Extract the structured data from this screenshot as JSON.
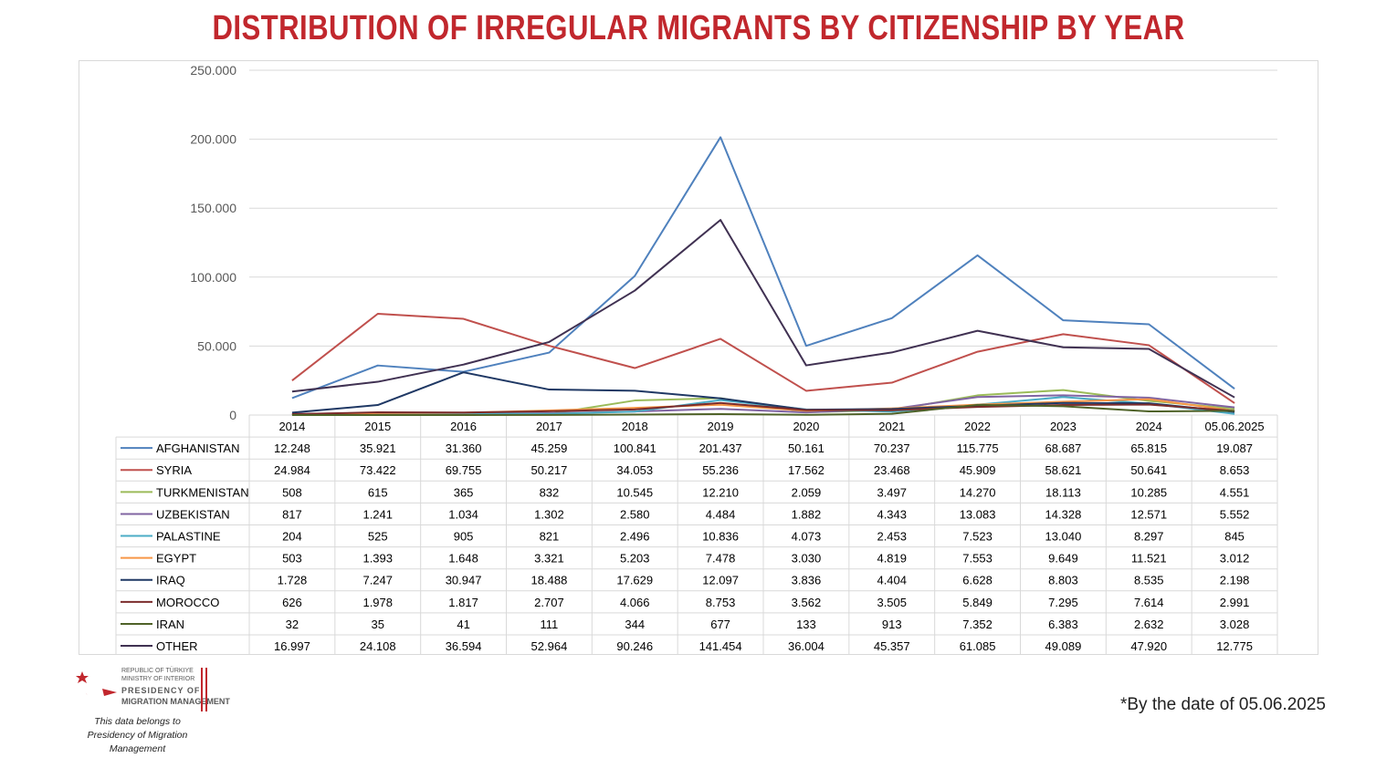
{
  "title": "DISTRIBUTION OF IRREGULAR MIGRANTS BY CITIZENSHIP BY YEAR",
  "footnote": "*By the date of 05.06.2025",
  "logo": {
    "line1": "REPUBLIC OF TÜRKIYE",
    "line2": "MINISTRY OF INTERIOR",
    "line3": "PRESIDENCY OF",
    "line4": "MIGRATION MANAGEMENT",
    "colors": {
      "red": "#c1272d"
    }
  },
  "credit": {
    "line1": "This data belongs to",
    "line2": "Presidency of Migration Management"
  },
  "chart_data": {
    "type": "line",
    "title": "DISTRIBUTION OF IRREGULAR MIGRANTS BY CITIZENSHIP BY YEAR",
    "xlabel": "",
    "ylabel": "",
    "ylim": [
      0,
      250000
    ],
    "yticks": [
      {
        "value": 0,
        "label": "0"
      },
      {
        "value": 50000,
        "label": "50.000"
      },
      {
        "value": 100000,
        "label": "100.000"
      },
      {
        "value": 150000,
        "label": "150.000"
      },
      {
        "value": 200000,
        "label": "200.000"
      },
      {
        "value": 250000,
        "label": "250.000"
      }
    ],
    "grid": true,
    "legend": "data-table",
    "categories": [
      "2014",
      "2015",
      "2016",
      "2017",
      "2018",
      "2019",
      "2020",
      "2021",
      "2022",
      "2023",
      "2024",
      "05.06.2025"
    ],
    "series": [
      {
        "name": "AFGHANISTAN",
        "color": "#4f81bd",
        "values": [
          12248,
          35921,
          31360,
          45259,
          100841,
          201437,
          50161,
          70237,
          115775,
          68687,
          65815,
          19087
        ],
        "labels": [
          "12.248",
          "35.921",
          "31.360",
          "45.259",
          "100.841",
          "201.437",
          "50.161",
          "70.237",
          "115.775",
          "68.687",
          "65.815",
          "19.087"
        ]
      },
      {
        "name": "SYRIA",
        "color": "#c0504d",
        "values": [
          24984,
          73422,
          69755,
          50217,
          34053,
          55236,
          17562,
          23468,
          45909,
          58621,
          50641,
          8653
        ],
        "labels": [
          "24.984",
          "73.422",
          "69.755",
          "50.217",
          "34.053",
          "55.236",
          "17.562",
          "23.468",
          "45.909",
          "58.621",
          "50.641",
          "8.653"
        ]
      },
      {
        "name": "TURKMENISTAN",
        "color": "#9bbb59",
        "values": [
          508,
          615,
          365,
          832,
          10545,
          12210,
          2059,
          3497,
          14270,
          18113,
          10285,
          4551
        ],
        "labels": [
          "508",
          "615",
          "365",
          "832",
          "10.545",
          "12.210",
          "2.059",
          "3.497",
          "14.270",
          "18.113",
          "10.285",
          "4.551"
        ]
      },
      {
        "name": "UZBEKISTAN",
        "color": "#8064a2",
        "values": [
          817,
          1241,
          1034,
          1302,
          2580,
          4484,
          1882,
          4343,
          13083,
          14328,
          12571,
          5552
        ],
        "labels": [
          "817",
          "1.241",
          "1.034",
          "1.302",
          "2.580",
          "4.484",
          "1.882",
          "4.343",
          "13.083",
          "14.328",
          "12.571",
          "5.552"
        ]
      },
      {
        "name": "PALASTINE",
        "color": "#4bacc6",
        "values": [
          204,
          525,
          905,
          821,
          2496,
          10836,
          4073,
          2453,
          7523,
          13040,
          8297,
          845
        ],
        "labels": [
          "204",
          "525",
          "905",
          "821",
          "2.496",
          "10.836",
          "4.073",
          "2.453",
          "7.523",
          "13.040",
          "8.297",
          "845"
        ]
      },
      {
        "name": "EGYPT",
        "color": "#f79646",
        "values": [
          503,
          1393,
          1648,
          3321,
          5203,
          7478,
          3030,
          4819,
          7553,
          9649,
          11521,
          3012
        ],
        "labels": [
          "503",
          "1.393",
          "1.648",
          "3.321",
          "5.203",
          "7.478",
          "3.030",
          "4.819",
          "7.553",
          "9.649",
          "11.521",
          "3.012"
        ]
      },
      {
        "name": "IRAQ",
        "color": "#1f3864",
        "values": [
          1728,
          7247,
          30947,
          18488,
          17629,
          12097,
          3836,
          4404,
          6628,
          8803,
          8535,
          2198
        ],
        "labels": [
          "1.728",
          "7.247",
          "30.947",
          "18.488",
          "17.629",
          "12.097",
          "3.836",
          "4.404",
          "6.628",
          "8.803",
          "8.535",
          "2.198"
        ]
      },
      {
        "name": "MOROCCO",
        "color": "#7b2c2c",
        "values": [
          626,
          1978,
          1817,
          2707,
          4066,
          8753,
          3562,
          3505,
          5849,
          7295,
          7614,
          2991
        ],
        "labels": [
          "626",
          "1.978",
          "1.817",
          "2.707",
          "4.066",
          "8.753",
          "3.562",
          "3.505",
          "5.849",
          "7.295",
          "7.614",
          "2.991"
        ]
      },
      {
        "name": "IRAN",
        "color": "#4f6228",
        "values": [
          32,
          35,
          41,
          111,
          344,
          677,
          133,
          913,
          7352,
          6383,
          2632,
          3028
        ],
        "labels": [
          "32",
          "35",
          "41",
          "111",
          "344",
          "677",
          "133",
          "913",
          "7.352",
          "6.383",
          "2.632",
          "3.028"
        ]
      },
      {
        "name": "OTHER",
        "color": "#403152",
        "values": [
          16997,
          24108,
          36594,
          52964,
          90246,
          141454,
          36004,
          45357,
          61085,
          49089,
          47920,
          12775
        ],
        "labels": [
          "16.997",
          "24.108",
          "36.594",
          "52.964",
          "90.246",
          "141.454",
          "36.004",
          "45.357",
          "61.085",
          "49.089",
          "47.920",
          "12.775"
        ]
      }
    ]
  }
}
